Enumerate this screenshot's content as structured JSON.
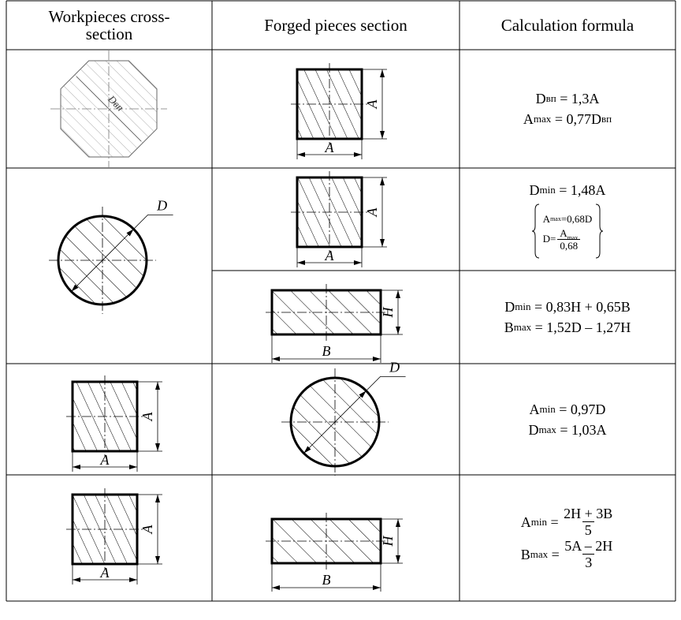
{
  "header": [
    "Workpieces cross-section",
    "Forged pieces section",
    "Calculation formula"
  ],
  "rows": [
    {
      "workpiece": {
        "shape": "octagon",
        "labels": {
          "diameter": "Dвп"
        }
      },
      "sections": [
        {
          "forged": {
            "shape": "square",
            "labels": {
              "width": "A",
              "height": "A"
            }
          },
          "formulas": [
            [
              {
                "t": "D"
              },
              {
                "sub": "вп"
              },
              {
                "t": " = 1,3A"
              }
            ],
            [
              {
                "t": "A"
              },
              {
                "sub": "max"
              },
              {
                "t": " = 0,77D"
              },
              {
                "sub": "вп"
              }
            ]
          ]
        }
      ]
    },
    {
      "workpiece": {
        "shape": "circle",
        "labels": {
          "diameter": "D"
        }
      },
      "sections": [
        {
          "forged": {
            "shape": "square",
            "labels": {
              "width": "A",
              "height": "A"
            }
          },
          "formulas": [
            [
              {
                "t": "D"
              },
              {
                "sub": "min"
              },
              {
                "t": " = 1,48A"
              }
            ],
            {
              "brace": [
                [
                  {
                    "t": "A"
                  },
                  {
                    "sub": "max"
                  },
                  {
                    "t": "=0,68D"
                  }
                ],
                [
                  {
                    "t": "D="
                  },
                  {
                    "frac": {
                      "num": [
                        {
                          "t": "A"
                        },
                        {
                          "sub": "max"
                        }
                      ],
                      "den": [
                        {
                          "t": "0,68"
                        }
                      ]
                    }
                  }
                ]
              ]
            }
          ]
        },
        {
          "forged": {
            "shape": "rect",
            "labels": {
              "width": "B",
              "height": "H"
            }
          },
          "formulas": [
            [
              {
                "t": "D"
              },
              {
                "sub": "min"
              },
              {
                "t": " = 0,83H + 0,65B"
              }
            ],
            [
              {
                "t": "B"
              },
              {
                "sub": "max"
              },
              {
                "t": " = 1,52D – 1,27H"
              }
            ]
          ]
        }
      ]
    },
    {
      "workpiece": {
        "shape": "square",
        "labels": {
          "width": "A",
          "height": "A"
        }
      },
      "sections": [
        {
          "forged": {
            "shape": "circle",
            "labels": {
              "diameter": "D"
            }
          },
          "formulas": [
            [
              {
                "t": "A"
              },
              {
                "sub": "min"
              },
              {
                "t": " = 0,97D"
              }
            ],
            [
              {
                "t": "D"
              },
              {
                "sub": "max"
              },
              {
                "t": " = 1,03A"
              }
            ]
          ]
        }
      ]
    },
    {
      "workpiece": {
        "shape": "square",
        "labels": {
          "width": "A",
          "height": "A"
        }
      },
      "sections": [
        {
          "forged": {
            "shape": "rect",
            "labels": {
              "width": "B",
              "height": "H"
            }
          },
          "formulas": [
            [
              {
                "t": "A"
              },
              {
                "sub": "min"
              },
              {
                "t": " = "
              },
              {
                "frac": {
                  "num": [
                    {
                      "t": "2H + 3B"
                    }
                  ],
                  "den": [
                    {
                      "t": "5"
                    }
                  ]
                }
              }
            ],
            [
              {
                "t": "B"
              },
              {
                "sub": "max"
              },
              {
                "t": " = "
              },
              {
                "frac": {
                  "num": [
                    {
                      "t": "5A – 2H"
                    }
                  ],
                  "den": [
                    {
                      "t": "3"
                    }
                  ]
                }
              }
            ]
          ]
        }
      ]
    }
  ]
}
